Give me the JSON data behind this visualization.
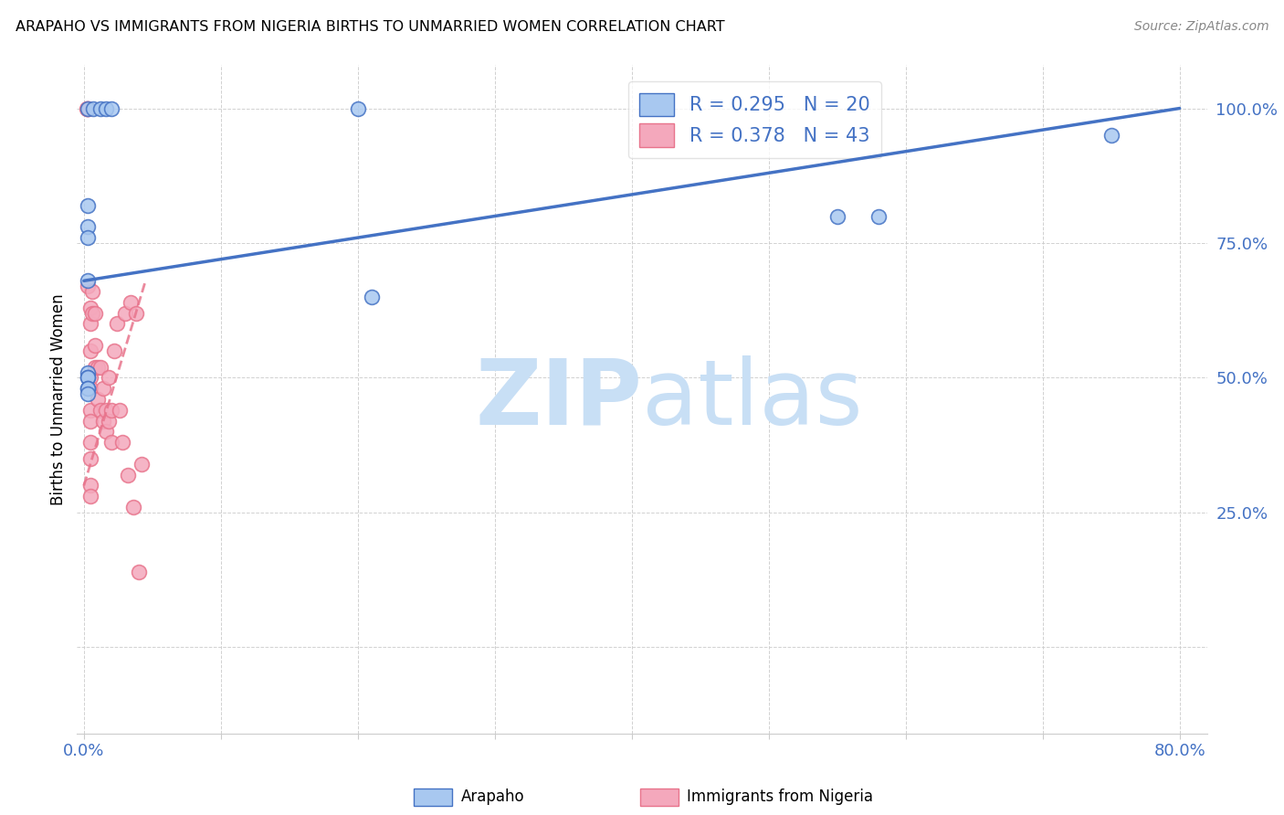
{
  "title": "ARAPAHO VS IMMIGRANTS FROM NIGERIA BIRTHS TO UNMARRIED WOMEN CORRELATION CHART",
  "source": "Source: ZipAtlas.com",
  "ylabel": "Births to Unmarried Women",
  "legend_label1": "Arapaho",
  "legend_label2": "Immigrants from Nigeria",
  "r1": 0.295,
  "n1": 20,
  "r2": 0.378,
  "n2": 43,
  "color1": "#A8C8F0",
  "color2": "#F4A8BC",
  "line_color1": "#4472C4",
  "line_color2": "#E8748C",
  "blue_line_x": [
    0.0,
    0.8
  ],
  "blue_line_y": [
    0.68,
    1.0
  ],
  "pink_line_x": [
    0.0,
    0.045
  ],
  "pink_line_y": [
    0.3,
    0.68
  ],
  "xlim": [
    -0.005,
    0.82
  ],
  "ylim": [
    -0.16,
    1.08
  ],
  "xticks": [
    0.0,
    0.1,
    0.2,
    0.3,
    0.4,
    0.5,
    0.6,
    0.7,
    0.8
  ],
  "yticks": [
    0.0,
    0.25,
    0.5,
    0.75,
    1.0
  ],
  "xtick_labels": [
    "0.0%",
    "",
    "",
    "",
    "",
    "",
    "",
    "",
    "80.0%"
  ],
  "ytick_labels": [
    "",
    "25.0%",
    "50.0%",
    "75.0%",
    "100.0%"
  ],
  "arapaho_x": [
    0.003,
    0.007,
    0.012,
    0.016,
    0.02,
    0.003,
    0.003,
    0.003,
    0.003,
    0.003,
    0.003,
    0.003,
    0.003,
    0.003,
    0.003,
    0.2,
    0.21,
    0.55,
    0.58,
    0.75
  ],
  "arapaho_y": [
    1.0,
    1.0,
    1.0,
    1.0,
    1.0,
    0.82,
    0.78,
    0.76,
    0.68,
    0.51,
    0.5,
    0.5,
    0.48,
    0.48,
    0.47,
    1.0,
    0.65,
    0.8,
    0.8,
    0.95
  ],
  "nigeria_x": [
    0.002,
    0.003,
    0.003,
    0.003,
    0.005,
    0.005,
    0.005,
    0.005,
    0.005,
    0.005,
    0.005,
    0.005,
    0.005,
    0.005,
    0.005,
    0.006,
    0.006,
    0.008,
    0.008,
    0.008,
    0.01,
    0.01,
    0.012,
    0.012,
    0.014,
    0.014,
    0.016,
    0.016,
    0.018,
    0.018,
    0.02,
    0.02,
    0.022,
    0.024,
    0.026,
    0.028,
    0.03,
    0.032,
    0.034,
    0.036,
    0.038,
    0.04,
    0.042
  ],
  "nigeria_y": [
    1.0,
    1.0,
    1.0,
    0.67,
    0.63,
    0.6,
    0.55,
    0.5,
    0.48,
    0.44,
    0.42,
    0.38,
    0.35,
    0.3,
    0.28,
    0.66,
    0.62,
    0.62,
    0.56,
    0.52,
    0.52,
    0.46,
    0.52,
    0.44,
    0.48,
    0.42,
    0.44,
    0.4,
    0.42,
    0.5,
    0.44,
    0.38,
    0.55,
    0.6,
    0.44,
    0.38,
    0.62,
    0.32,
    0.64,
    0.26,
    0.62,
    0.14,
    0.34
  ],
  "watermark_zip": "ZIP",
  "watermark_atlas": "atlas",
  "watermark_color": "#C8DFF5",
  "watermark_fontsize": 72,
  "background_color": "#FFFFFF"
}
